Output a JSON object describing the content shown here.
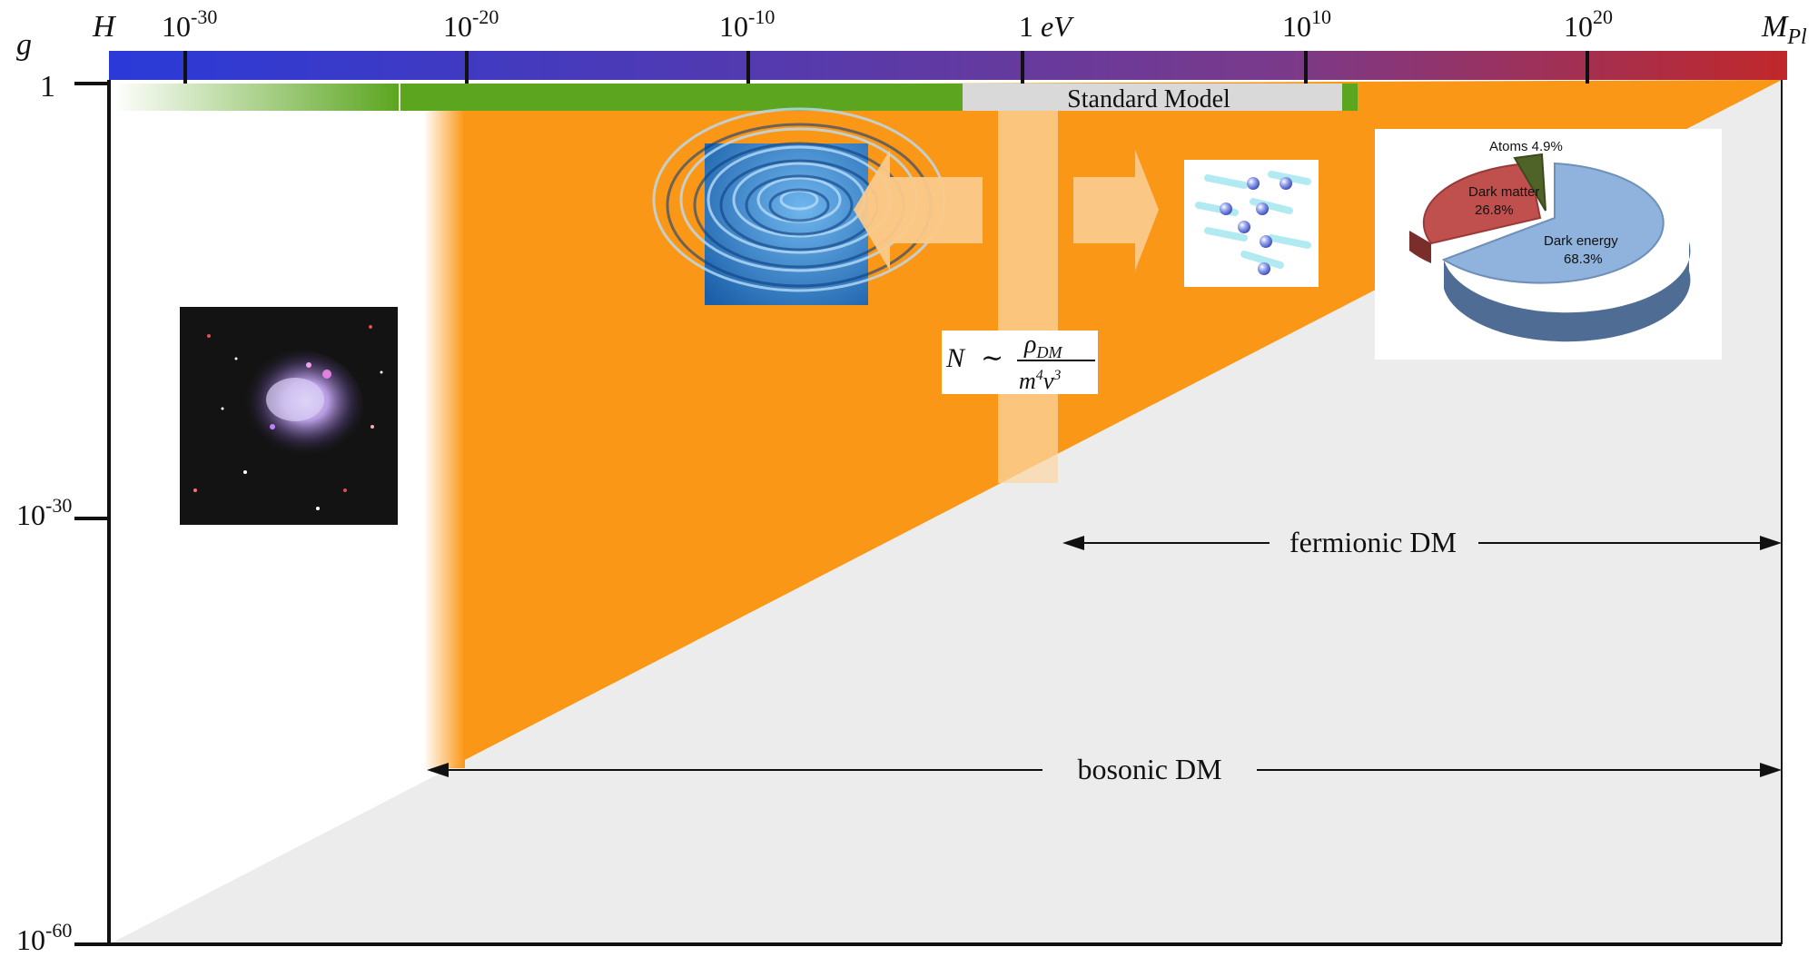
{
  "axes": {
    "y_label": "g",
    "x_left_label": "H",
    "x_right_label_main": "M",
    "x_right_label_sub": "Pl",
    "x_ticks": [
      {
        "base": "10",
        "exp": "-30"
      },
      {
        "base": "10",
        "exp": "-20"
      },
      {
        "base": "10",
        "exp": "-10"
      },
      {
        "base": "1 ",
        "exp": "",
        "unit": "eV"
      },
      {
        "base": "10",
        "exp": "10"
      },
      {
        "base": "10",
        "exp": "20"
      }
    ],
    "y_ticks": [
      {
        "base": "1",
        "exp": ""
      },
      {
        "base": "10",
        "exp": "-30"
      },
      {
        "base": "10",
        "exp": "-60"
      }
    ]
  },
  "bands": {
    "standard_model_label": "Standard Model"
  },
  "formula": {
    "lhs": "N",
    "relation": "∼",
    "numerator": "ρ",
    "numerator_sub": "DM",
    "denominator_m": "m",
    "denominator_m_exp": "4",
    "denominator_v": "v",
    "denominator_v_exp": "3"
  },
  "ranges": {
    "fermionic": "fermionic DM",
    "bosonic": "bosonic DM"
  },
  "pie": {
    "atoms": "Atoms 4.9%",
    "dark_matter_name": "Dark matter",
    "dark_matter_pct": "26.8%",
    "dark_energy_name": "Dark energy",
    "dark_energy_pct": "68.3%"
  },
  "colors": {
    "region": "#fb9716",
    "excluded": "#ececec",
    "band_green": "#5ba51f",
    "bar_left": "#2a3ad8",
    "bar_mid": "#6b3a8a",
    "bar_right": "#c0282a",
    "arrow_fill": "#fbc98a",
    "sm_gray": "#d9d9d9",
    "pie_energy": "#8fb3dc",
    "pie_matter": "#c0504d",
    "pie_atoms": "#4f6228"
  },
  "icons": {
    "galaxy": "galaxy-photo",
    "wave": "water-ripple-image",
    "particles": "particle-spheres-image"
  }
}
